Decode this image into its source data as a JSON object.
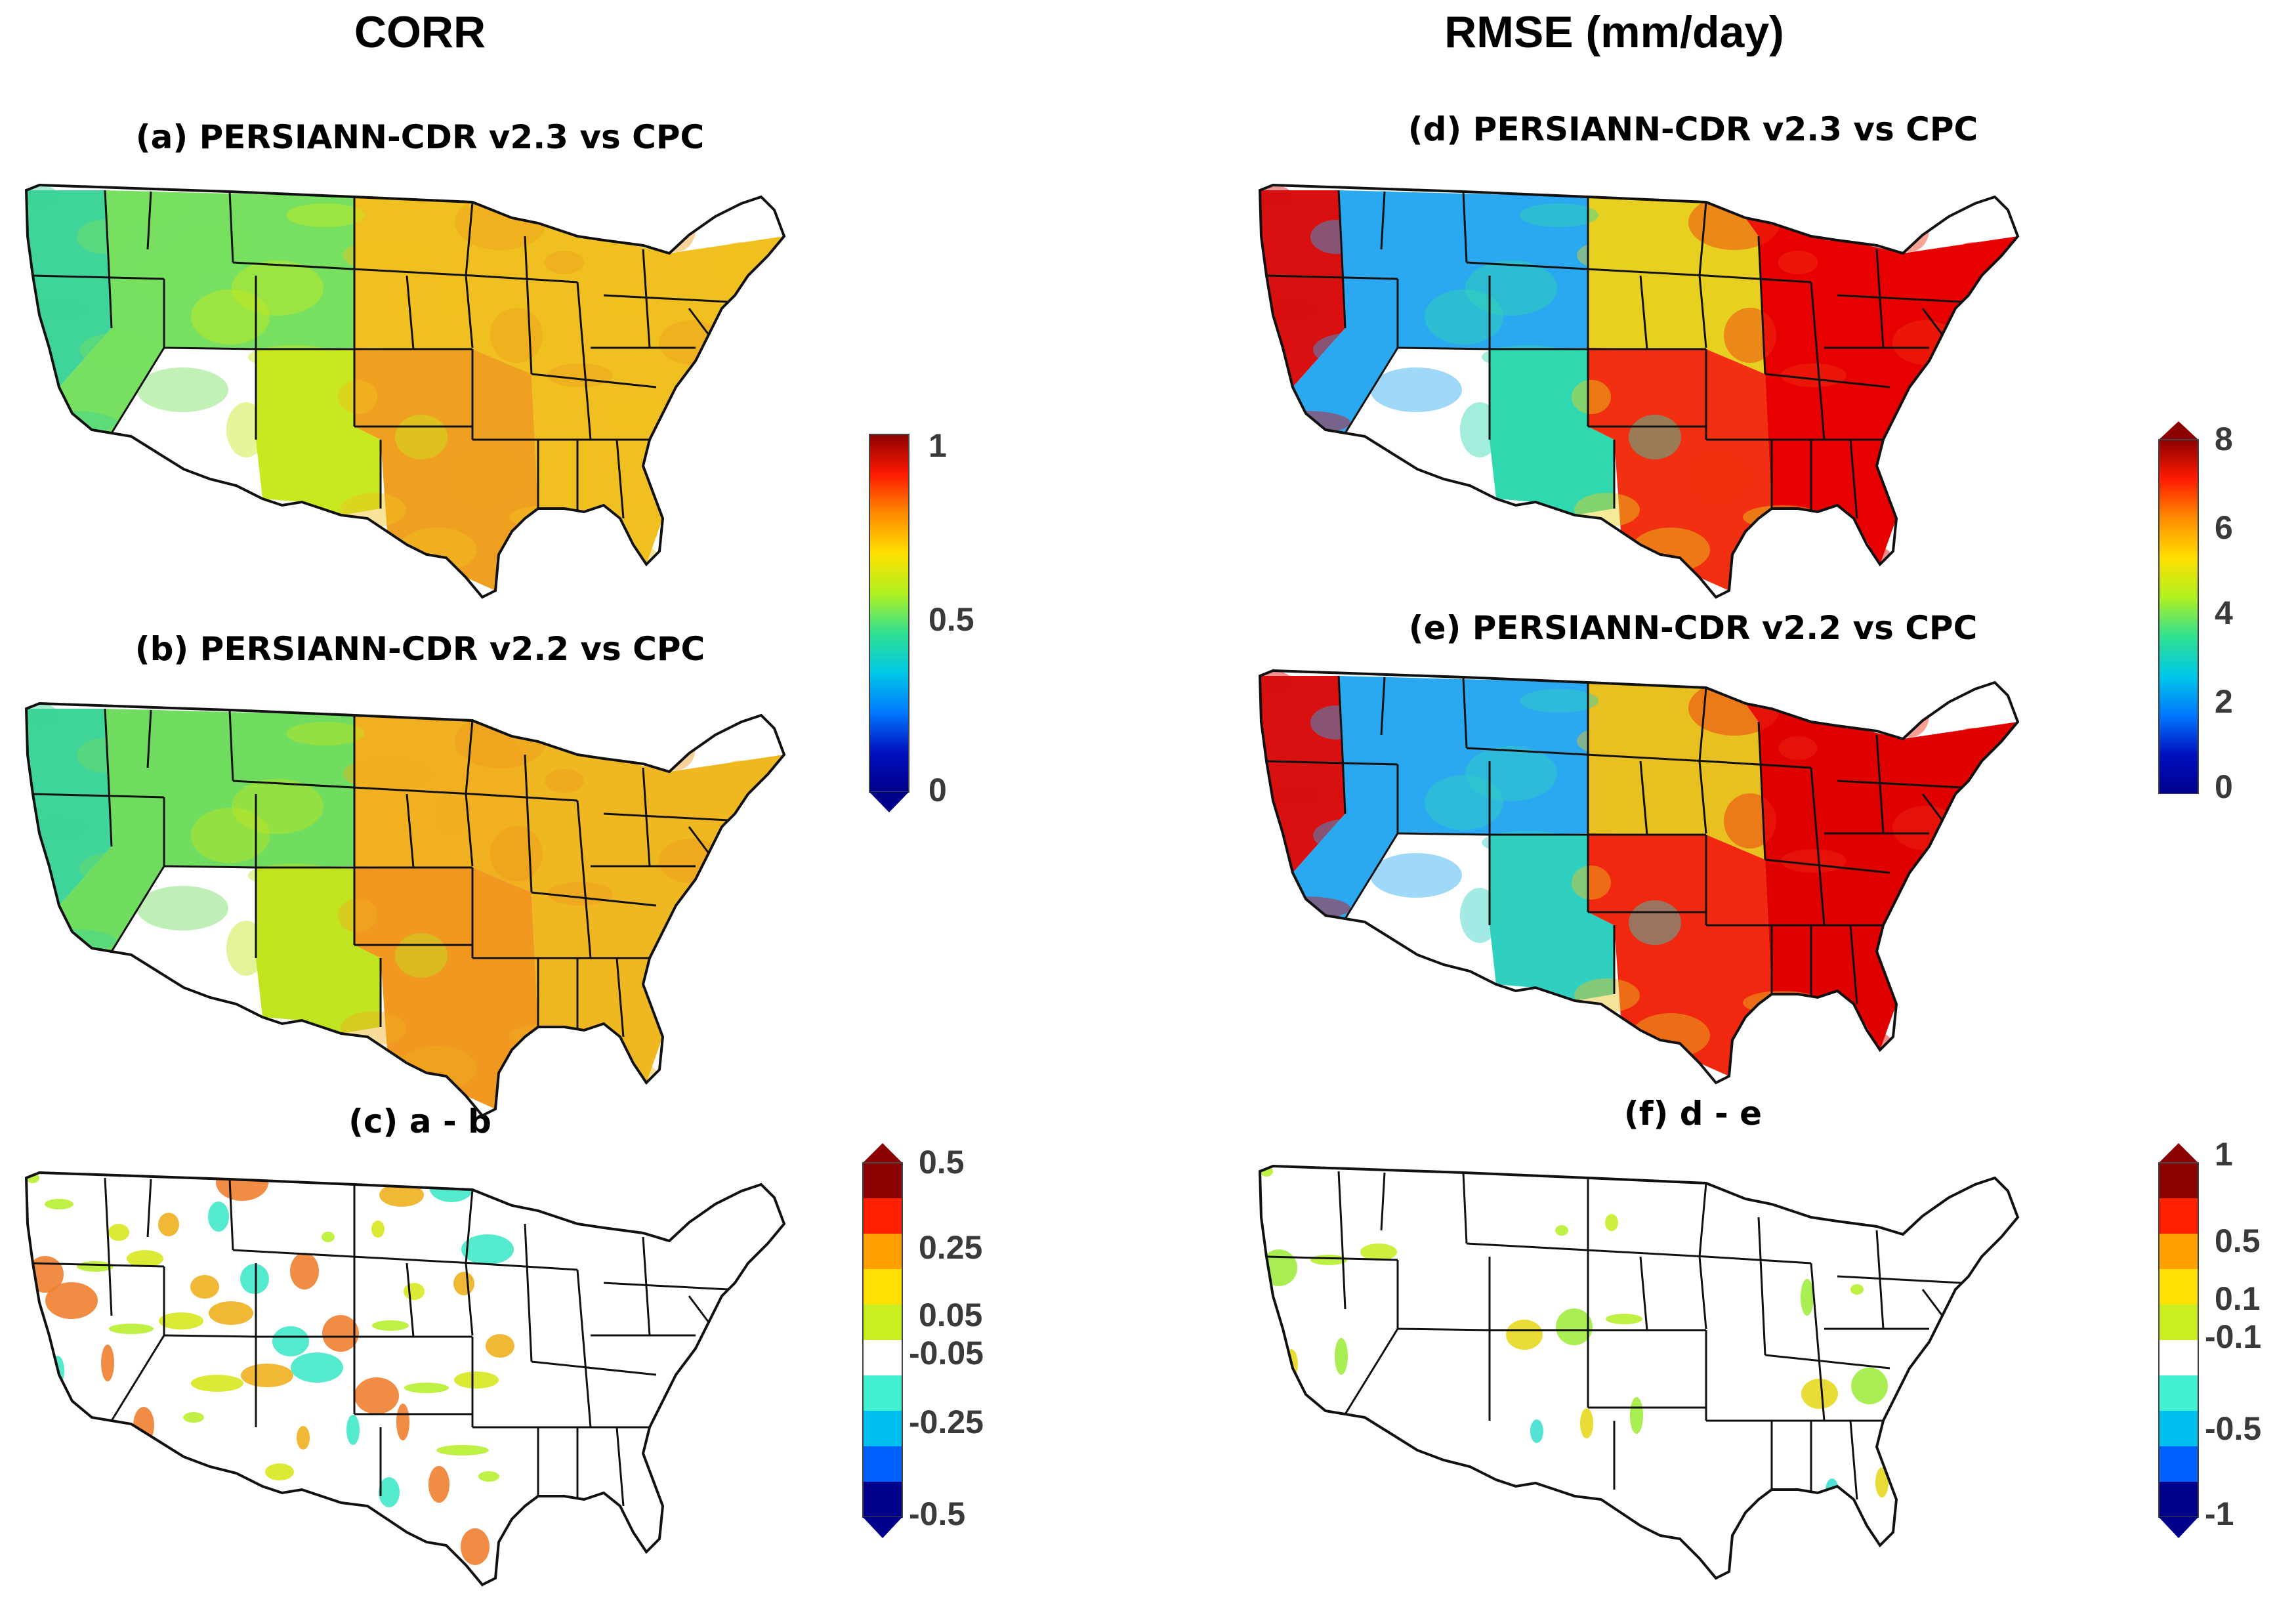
{
  "columns": {
    "left_title": "CORR",
    "right_title": "RMSE (mm/day)"
  },
  "panels": {
    "a": "(a) PERSIANN-CDR v2.3 vs CPC",
    "b": "(b) PERSIANN-CDR v2.2 vs CPC",
    "c": "(c) a - b",
    "d": "(d) PERSIANN-CDR v2.3 vs CPC",
    "e": "(e) PERSIANN-CDR v2.2 vs CPC",
    "f": "(f) d - e"
  },
  "colorbars": {
    "corr": {
      "min": 0,
      "max": 1,
      "ticks": [
        "1",
        "0.5",
        "0"
      ],
      "colors": [
        "#8b0000",
        "#ff1a00",
        "#ff8c00",
        "#ffe000",
        "#b0f020",
        "#30e090",
        "#00c8e8",
        "#0078ff",
        "#0010c0",
        "#00008b"
      ]
    },
    "rmse": {
      "min": 0,
      "max": 8,
      "ticks": [
        "8",
        "6",
        "4",
        "2",
        "0"
      ],
      "colors": [
        "#8b0000",
        "#ff1a00",
        "#ff8c00",
        "#ffe000",
        "#b0f020",
        "#30e090",
        "#00c8e8",
        "#0078ff",
        "#0010c0",
        "#00008b"
      ]
    },
    "corr_diff": {
      "ticks": [
        "0.5",
        "0.25",
        "0.05",
        "-0.05",
        "-0.25",
        "-0.5"
      ],
      "colors": [
        "#8b0000",
        "#ff2000",
        "#ffa000",
        "#ffe000",
        "#c8f020",
        "#ffffff",
        "#40f0d0",
        "#00c0f0",
        "#0060ff",
        "#00008b"
      ]
    },
    "rmse_diff": {
      "ticks": [
        "1",
        "0.5",
        "0.1",
        "-0.1",
        "-0.5",
        "-1"
      ],
      "colors": [
        "#8b0000",
        "#ff2000",
        "#ffa000",
        "#ffe000",
        "#c8f020",
        "#ffffff",
        "#40f0d0",
        "#00c0f0",
        "#0060ff",
        "#00008b"
      ]
    }
  },
  "map_fills": {
    "corr_a": [
      "#3fd49a",
      "#78e060",
      "#c8e820",
      "#f0c020",
      "#f0a020",
      "#f0c020"
    ],
    "corr_b": [
      "#3fd49a",
      "#70dc60",
      "#c0e420",
      "#f0b020",
      "#f09820",
      "#f0b820"
    ],
    "rmse_d": [
      "#d81010",
      "#2aa8f0",
      "#30d8b0",
      "#e8d020",
      "#f03010",
      "#e80000"
    ],
    "rmse_e": [
      "#d81010",
      "#2aa8f0",
      "#30d0c0",
      "#e8c020",
      "#f02810",
      "#e00000"
    ]
  }
}
